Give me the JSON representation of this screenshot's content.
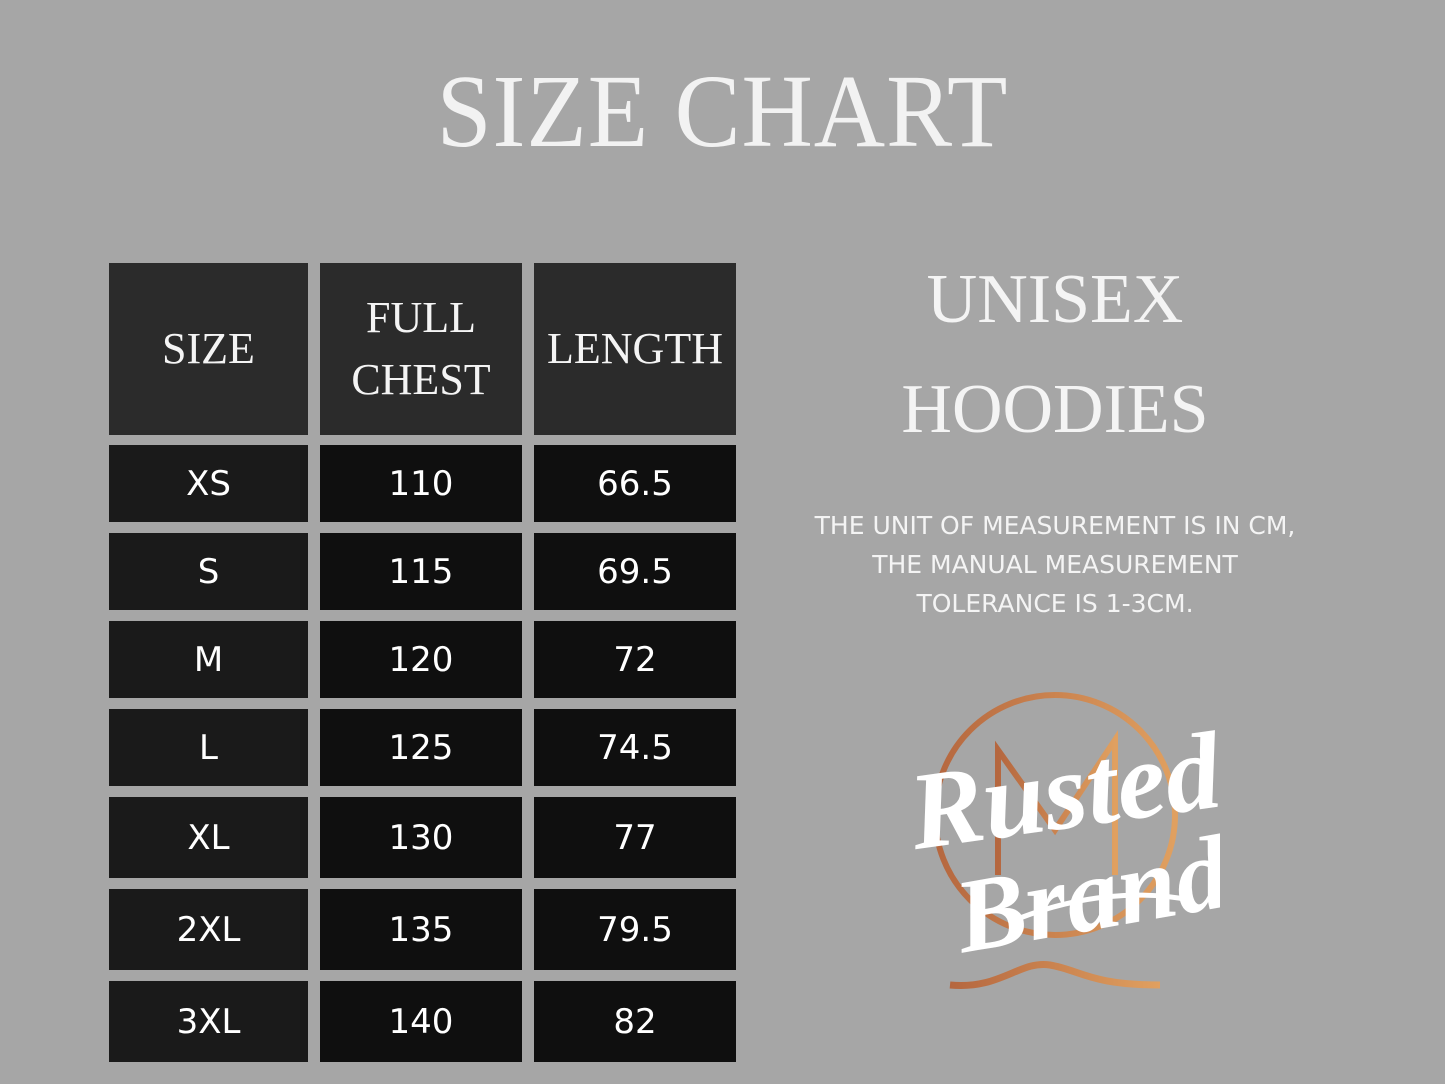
{
  "title": "SIZE CHART",
  "table": {
    "headers": [
      "SIZE",
      "FULL CHEST",
      "LENGTH"
    ],
    "rows": [
      [
        "XS",
        "110",
        "66.5"
      ],
      [
        "S",
        "115",
        "69.5"
      ],
      [
        "M",
        "120",
        "72"
      ],
      [
        "L",
        "125",
        "74.5"
      ],
      [
        "XL",
        "130",
        "77"
      ],
      [
        "2XL",
        "135",
        "79.5"
      ],
      [
        "3XL",
        "140",
        "82"
      ]
    ]
  },
  "product": {
    "line1": "UNISEX",
    "line2": "HOODIES"
  },
  "note": "THE UNIT OF MEASUREMENT IS IN CM, THE MANUAL MEASUREMENT TOLERANCE IS 1-3CM.",
  "logo": {
    "text": "Rusted Brand",
    "accent_start": "#b5673f",
    "accent_end": "#e0a060"
  },
  "colors": {
    "background": "#a6a6a6",
    "header_cell": "#2b2b2b",
    "size_cell": "#1a1a1a",
    "value_cell": "#0f0f0f"
  }
}
